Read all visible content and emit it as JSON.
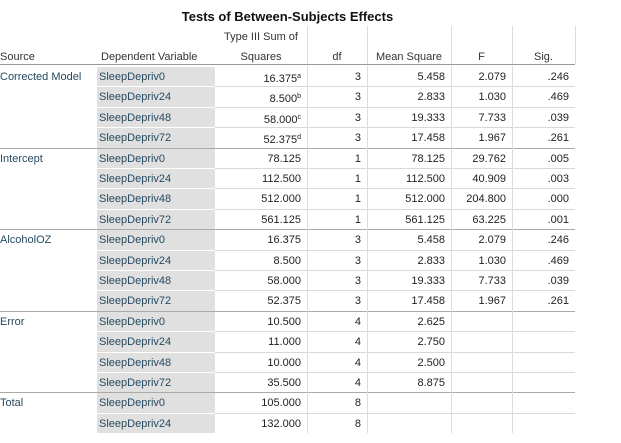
{
  "title": "Tests of Between-Subjects Effects",
  "headers": {
    "source": "Source",
    "dv": "Dependent Variable",
    "ss_line1": "Type III Sum of",
    "ss_line2": "Squares",
    "df": "df",
    "ms": "Mean Square",
    "f": "F",
    "sig": "Sig."
  },
  "groups": [
    {
      "source": "Corrected Model",
      "rows": [
        {
          "dv": "SleepDepriv0",
          "ss": "16.375",
          "ss_note": "a",
          "df": "3",
          "ms": "5.458",
          "f": "2.079",
          "sig": ".246"
        },
        {
          "dv": "SleepDepriv24",
          "ss": "8.500",
          "ss_note": "b",
          "df": "3",
          "ms": "2.833",
          "f": "1.030",
          "sig": ".469"
        },
        {
          "dv": "SleepDepriv48",
          "ss": "58.000",
          "ss_note": "c",
          "df": "3",
          "ms": "19.333",
          "f": "7.733",
          "sig": ".039"
        },
        {
          "dv": "SleepDepriv72",
          "ss": "52.375",
          "ss_note": "d",
          "df": "3",
          "ms": "17.458",
          "f": "1.967",
          "sig": ".261"
        }
      ]
    },
    {
      "source": "Intercept",
      "rows": [
        {
          "dv": "SleepDepriv0",
          "ss": "78.125",
          "df": "1",
          "ms": "78.125",
          "f": "29.762",
          "sig": ".005"
        },
        {
          "dv": "SleepDepriv24",
          "ss": "112.500",
          "df": "1",
          "ms": "112.500",
          "f": "40.909",
          "sig": ".003"
        },
        {
          "dv": "SleepDepriv48",
          "ss": "512.000",
          "df": "1",
          "ms": "512.000",
          "f": "204.800",
          "sig": ".000"
        },
        {
          "dv": "SleepDepriv72",
          "ss": "561.125",
          "df": "1",
          "ms": "561.125",
          "f": "63.225",
          "sig": ".001"
        }
      ]
    },
    {
      "source": "AlcoholOZ",
      "rows": [
        {
          "dv": "SleepDepriv0",
          "ss": "16.375",
          "df": "3",
          "ms": "5.458",
          "f": "2.079",
          "sig": ".246"
        },
        {
          "dv": "SleepDepriv24",
          "ss": "8.500",
          "df": "3",
          "ms": "2.833",
          "f": "1.030",
          "sig": ".469"
        },
        {
          "dv": "SleepDepriv48",
          "ss": "58.000",
          "df": "3",
          "ms": "19.333",
          "f": "7.733",
          "sig": ".039"
        },
        {
          "dv": "SleepDepriv72",
          "ss": "52.375",
          "df": "3",
          "ms": "17.458",
          "f": "1.967",
          "sig": ".261"
        }
      ]
    },
    {
      "source": "Error",
      "rows": [
        {
          "dv": "SleepDepriv0",
          "ss": "10.500",
          "df": "4",
          "ms": "2.625"
        },
        {
          "dv": "SleepDepriv24",
          "ss": "11.000",
          "df": "4",
          "ms": "2.750"
        },
        {
          "dv": "SleepDepriv48",
          "ss": "10.000",
          "df": "4",
          "ms": "2.500"
        },
        {
          "dv": "SleepDepriv72",
          "ss": "35.500",
          "df": "4",
          "ms": "8.875"
        }
      ]
    },
    {
      "source": "Total",
      "rows": [
        {
          "dv": "SleepDepriv0",
          "ss": "105.000",
          "df": "8"
        },
        {
          "dv": "SleepDepriv24",
          "ss": "132.000",
          "df": "8"
        }
      ]
    }
  ]
}
